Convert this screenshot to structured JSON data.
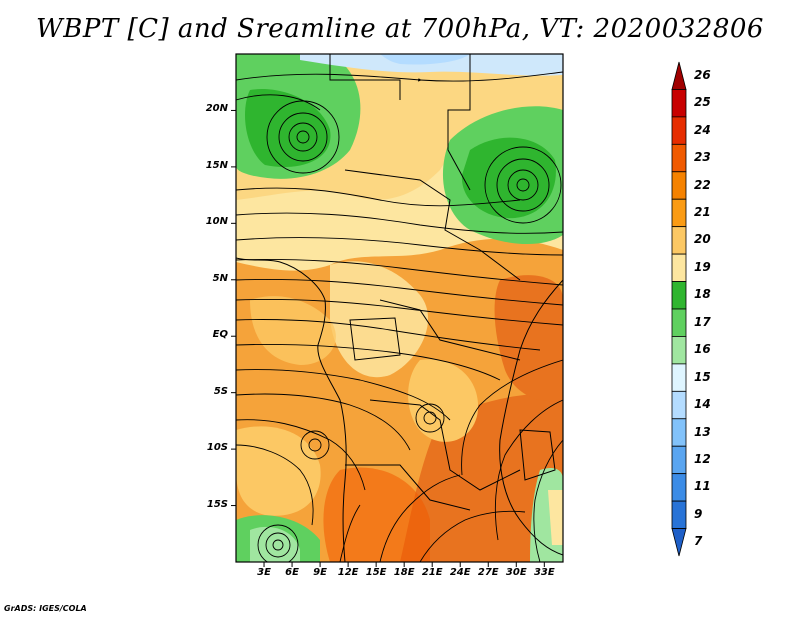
{
  "title": "WBPT [C] and Sreamline at 700hPa, VT: 2020032806",
  "credit": "GrADS: IGES/COLA",
  "map": {
    "lon_labels": [
      "3E",
      "6E",
      "9E",
      "12E",
      "15E",
      "18E",
      "21E",
      "24E",
      "27E",
      "30E",
      "33E"
    ],
    "lon_values": [
      3,
      6,
      9,
      12,
      15,
      18,
      21,
      24,
      27,
      30,
      33
    ],
    "lat_labels": [
      "20N",
      "15N",
      "10N",
      "5N",
      "EQ",
      "5S",
      "10S",
      "15S"
    ],
    "lat_values": [
      20,
      15,
      10,
      5,
      0,
      -5,
      -10,
      -15
    ],
    "lon_range": [
      0,
      35
    ],
    "lat_range": [
      -20,
      25
    ]
  },
  "legend": {
    "labels": [
      "26",
      "25",
      "24",
      "23",
      "22",
      "21",
      "20",
      "19",
      "18",
      "17",
      "16",
      "15",
      "14",
      "13",
      "12",
      "11",
      "9",
      "7"
    ],
    "colors": [
      "#a00000",
      "#c80000",
      "#e62d00",
      "#f05a00",
      "#f58200",
      "#fa9b14",
      "#fcc864",
      "#fde6a0",
      "#2fb52f",
      "#5fd05f",
      "#a0e6a0",
      "#dff5ff",
      "#b4dcff",
      "#82c2fa",
      "#5aa5f0",
      "#3c8ce6",
      "#2873d7",
      "#1e5fc8"
    ]
  },
  "colors": {
    "land_orange": "#f5a33a",
    "land_dark": "#e8731f",
    "land_light": "#f9d27a",
    "green": "#52c152",
    "ocean_blue": "#cfe8fb"
  }
}
